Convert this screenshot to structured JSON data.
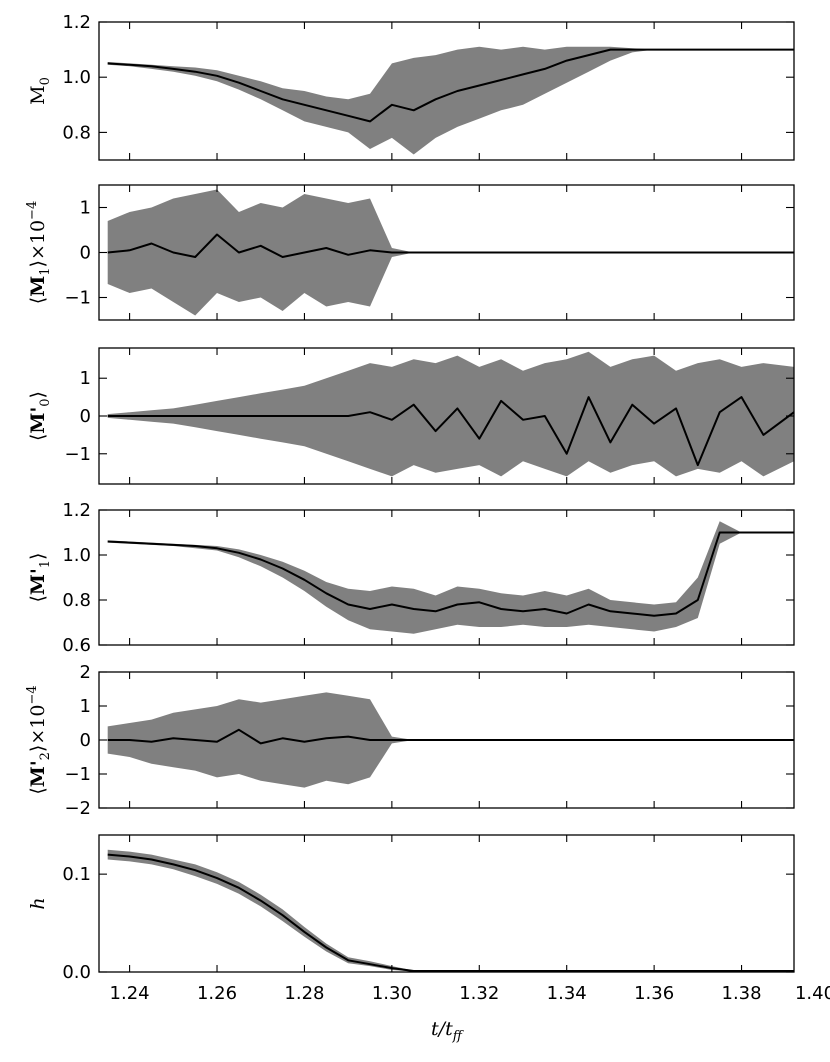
{
  "chart_data": {
    "type": "line",
    "layout": "stacked-panels",
    "shared_x": true,
    "xlabel": "t/t_ff",
    "xlim": [
      1.233,
      1.392
    ],
    "xticks": [
      1.24,
      1.26,
      1.28,
      1.3,
      1.32,
      1.34,
      1.36,
      1.38,
      1.4
    ],
    "xtick_labels": [
      "1.24",
      "1.26",
      "1.28",
      "1.30",
      "1.32",
      "1.34",
      "1.36",
      "1.38",
      "1.40"
    ],
    "x": [
      1.235,
      1.24,
      1.245,
      1.25,
      1.255,
      1.26,
      1.265,
      1.27,
      1.275,
      1.28,
      1.285,
      1.29,
      1.295,
      1.3,
      1.305,
      1.31,
      1.315,
      1.32,
      1.325,
      1.33,
      1.335,
      1.34,
      1.345,
      1.35,
      1.355,
      1.36,
      1.365,
      1.37,
      1.375,
      1.38,
      1.385,
      1.392
    ],
    "band_color": "#808080",
    "line_color": "#000000",
    "panels": [
      {
        "id": "m0",
        "ylabel": "M_0",
        "ylim": [
          0.7,
          1.2
        ],
        "yticks": [
          0.8,
          1.0,
          1.2
        ],
        "ytick_labels": [
          "0.8",
          "1.0",
          "1.2"
        ],
        "mean": [
          1.05,
          1.045,
          1.04,
          1.03,
          1.02,
          1.005,
          0.98,
          0.95,
          0.92,
          0.9,
          0.88,
          0.86,
          0.84,
          0.9,
          0.88,
          0.92,
          0.95,
          0.97,
          0.99,
          1.01,
          1.03,
          1.06,
          1.08,
          1.1,
          1.1,
          1.1,
          1.1,
          1.1,
          1.1,
          1.1,
          1.1,
          1.1
        ],
        "lower": [
          1.045,
          1.04,
          1.03,
          1.02,
          1.005,
          0.985,
          0.955,
          0.92,
          0.88,
          0.84,
          0.82,
          0.8,
          0.74,
          0.78,
          0.72,
          0.78,
          0.82,
          0.85,
          0.88,
          0.9,
          0.94,
          0.98,
          1.02,
          1.06,
          1.09,
          1.1,
          1.1,
          1.1,
          1.1,
          1.1,
          1.1,
          1.1
        ],
        "upper": [
          1.055,
          1.05,
          1.045,
          1.04,
          1.035,
          1.025,
          1.005,
          0.985,
          0.96,
          0.95,
          0.93,
          0.92,
          0.94,
          1.05,
          1.07,
          1.08,
          1.1,
          1.11,
          1.1,
          1.11,
          1.1,
          1.11,
          1.11,
          1.11,
          1.105,
          1.1,
          1.1,
          1.1,
          1.1,
          1.1,
          1.1,
          1.1
        ]
      },
      {
        "id": "m1",
        "ylabel": "⟨M_1⟩×10^-4",
        "ylim": [
          -1.5,
          1.5
        ],
        "yticks": [
          -1,
          0,
          1
        ],
        "ytick_labels": [
          "−1",
          "0",
          "1"
        ],
        "mean": [
          0.0,
          0.05,
          0.2,
          0.0,
          -0.1,
          0.4,
          0.0,
          0.15,
          -0.1,
          0.0,
          0.1,
          -0.05,
          0.05,
          0.0,
          0.0,
          0.0,
          0.0,
          0.0,
          0.0,
          0.0,
          0.0,
          0.0,
          0.0,
          0.0,
          0.0,
          0.0,
          0.0,
          0.0,
          0.0,
          0.0,
          0.0,
          0.0
        ],
        "lower": [
          -0.7,
          -0.9,
          -0.8,
          -1.1,
          -1.4,
          -0.9,
          -1.1,
          -1.0,
          -1.3,
          -0.9,
          -1.2,
          -1.1,
          -1.2,
          -0.1,
          0.0,
          0.0,
          0.0,
          0.0,
          0.0,
          0.0,
          0.0,
          0.0,
          0.0,
          0.0,
          0.0,
          0.0,
          0.0,
          0.0,
          0.0,
          0.0,
          0.0,
          0.0
        ],
        "upper": [
          0.7,
          0.9,
          1.0,
          1.2,
          1.3,
          1.4,
          0.9,
          1.1,
          1.0,
          1.3,
          1.2,
          1.1,
          1.2,
          0.1,
          0.0,
          0.0,
          0.0,
          0.0,
          0.0,
          0.0,
          0.0,
          0.0,
          0.0,
          0.0,
          0.0,
          0.0,
          0.0,
          0.0,
          0.0,
          0.0,
          0.0,
          0.0
        ]
      },
      {
        "id": "m0p",
        "ylabel": "⟨M'_0⟩",
        "ylim": [
          -1.8,
          1.8
        ],
        "yticks": [
          -1,
          0,
          1
        ],
        "ytick_labels": [
          "−1",
          "0",
          "1"
        ],
        "mean": [
          0.0,
          0.0,
          0.0,
          0.0,
          0.0,
          0.0,
          0.0,
          0.0,
          0.0,
          0.0,
          0.0,
          0.0,
          0.1,
          -0.1,
          0.3,
          -0.4,
          0.2,
          -0.6,
          0.4,
          -0.1,
          0.0,
          -1.0,
          0.5,
          -0.7,
          0.3,
          -0.2,
          0.2,
          -1.3,
          0.1,
          0.5,
          -0.5,
          0.1
        ],
        "lower": [
          -0.05,
          -0.1,
          -0.15,
          -0.2,
          -0.3,
          -0.4,
          -0.5,
          -0.6,
          -0.7,
          -0.8,
          -1.0,
          -1.2,
          -1.4,
          -1.6,
          -1.3,
          -1.5,
          -1.4,
          -1.3,
          -1.6,
          -1.2,
          -1.4,
          -1.6,
          -1.2,
          -1.5,
          -1.3,
          -1.2,
          -1.6,
          -1.4,
          -1.5,
          -1.2,
          -1.6,
          -1.2
        ],
        "upper": [
          0.05,
          0.1,
          0.15,
          0.2,
          0.3,
          0.4,
          0.5,
          0.6,
          0.7,
          0.8,
          1.0,
          1.2,
          1.4,
          1.3,
          1.5,
          1.4,
          1.6,
          1.3,
          1.5,
          1.2,
          1.4,
          1.5,
          1.7,
          1.3,
          1.5,
          1.6,
          1.2,
          1.4,
          1.5,
          1.3,
          1.4,
          1.3
        ]
      },
      {
        "id": "m1p",
        "ylabel": "⟨M'_1⟩",
        "ylim": [
          0.6,
          1.2
        ],
        "yticks": [
          0.6,
          0.8,
          1.0,
          1.2
        ],
        "ytick_labels": [
          "0.6",
          "0.8",
          "1.0",
          "1.2"
        ],
        "mean": [
          1.06,
          1.055,
          1.05,
          1.045,
          1.04,
          1.03,
          1.01,
          0.98,
          0.94,
          0.89,
          0.83,
          0.78,
          0.76,
          0.78,
          0.76,
          0.75,
          0.78,
          0.79,
          0.76,
          0.75,
          0.76,
          0.74,
          0.78,
          0.75,
          0.74,
          0.73,
          0.74,
          0.8,
          1.1,
          1.1,
          1.1,
          1.1
        ],
        "lower": [
          1.055,
          1.05,
          1.045,
          1.04,
          1.03,
          1.02,
          0.99,
          0.95,
          0.9,
          0.84,
          0.77,
          0.71,
          0.67,
          0.66,
          0.65,
          0.67,
          0.69,
          0.68,
          0.68,
          0.69,
          0.68,
          0.68,
          0.69,
          0.68,
          0.67,
          0.66,
          0.68,
          0.72,
          1.05,
          1.1,
          1.1,
          1.1
        ],
        "upper": [
          1.065,
          1.06,
          1.055,
          1.05,
          1.045,
          1.04,
          1.025,
          1.0,
          0.97,
          0.93,
          0.88,
          0.85,
          0.84,
          0.86,
          0.85,
          0.82,
          0.86,
          0.85,
          0.83,
          0.82,
          0.84,
          0.82,
          0.85,
          0.8,
          0.79,
          0.78,
          0.79,
          0.9,
          1.15,
          1.1,
          1.1,
          1.1
        ]
      },
      {
        "id": "m2p",
        "ylabel": "⟨M'_2⟩×10^-4",
        "ylim": [
          -2,
          2
        ],
        "yticks": [
          -2,
          -1,
          0,
          1,
          2
        ],
        "ytick_labels": [
          "−2",
          "−1",
          "0",
          "1",
          "2"
        ],
        "mean": [
          0.0,
          0.0,
          -0.05,
          0.05,
          0.0,
          -0.05,
          0.3,
          -0.1,
          0.05,
          -0.05,
          0.05,
          0.1,
          0.0,
          0.0,
          0.0,
          0.0,
          0.0,
          0.0,
          0.0,
          0.0,
          0.0,
          0.0,
          0.0,
          0.0,
          0.0,
          0.0,
          0.0,
          0.0,
          0.0,
          0.0,
          0.0,
          0.0
        ],
        "lower": [
          -0.4,
          -0.5,
          -0.7,
          -0.8,
          -0.9,
          -1.1,
          -1.0,
          -1.2,
          -1.3,
          -1.4,
          -1.2,
          -1.3,
          -1.1,
          -0.1,
          0.0,
          0.0,
          0.0,
          0.0,
          0.0,
          0.0,
          0.0,
          0.0,
          0.0,
          0.0,
          0.0,
          0.0,
          0.0,
          0.0,
          0.0,
          0.0,
          0.0,
          0.0
        ],
        "upper": [
          0.4,
          0.5,
          0.6,
          0.8,
          0.9,
          1.0,
          1.2,
          1.1,
          1.2,
          1.3,
          1.4,
          1.3,
          1.2,
          0.1,
          0.0,
          0.0,
          0.0,
          0.0,
          0.0,
          0.0,
          0.0,
          0.0,
          0.0,
          0.0,
          0.0,
          0.0,
          0.0,
          0.0,
          0.0,
          0.0,
          0.0,
          0.0
        ]
      },
      {
        "id": "h",
        "ylabel": "h",
        "ylim": [
          0.0,
          0.14
        ],
        "yticks": [
          0.0,
          0.1
        ],
        "ytick_labels": [
          "0.0",
          "0.1"
        ],
        "mean": [
          0.12,
          0.118,
          0.115,
          0.11,
          0.104,
          0.096,
          0.086,
          0.073,
          0.058,
          0.041,
          0.025,
          0.012,
          0.008,
          0.004,
          0.001,
          0.001,
          0.001,
          0.001,
          0.001,
          0.001,
          0.001,
          0.001,
          0.001,
          0.001,
          0.001,
          0.001,
          0.001,
          0.001,
          0.001,
          0.001,
          0.001,
          0.001
        ],
        "lower": [
          0.115,
          0.113,
          0.11,
          0.105,
          0.098,
          0.09,
          0.08,
          0.067,
          0.052,
          0.036,
          0.021,
          0.009,
          0.006,
          0.002,
          0.0005,
          0.0005,
          0.0005,
          0.0005,
          0.0005,
          0.0005,
          0.0005,
          0.0005,
          0.0005,
          0.0005,
          0.0005,
          0.0005,
          0.0005,
          0.0005,
          0.0005,
          0.0005,
          0.0005,
          0.0005
        ],
        "upper": [
          0.125,
          0.123,
          0.12,
          0.115,
          0.11,
          0.102,
          0.092,
          0.079,
          0.064,
          0.046,
          0.029,
          0.015,
          0.011,
          0.006,
          0.0015,
          0.0015,
          0.0015,
          0.0015,
          0.0015,
          0.0015,
          0.0015,
          0.0015,
          0.0015,
          0.0015,
          0.0015,
          0.0015,
          0.0015,
          0.0015,
          0.0015,
          0.0015,
          0.0015,
          0.0015
        ]
      }
    ]
  }
}
